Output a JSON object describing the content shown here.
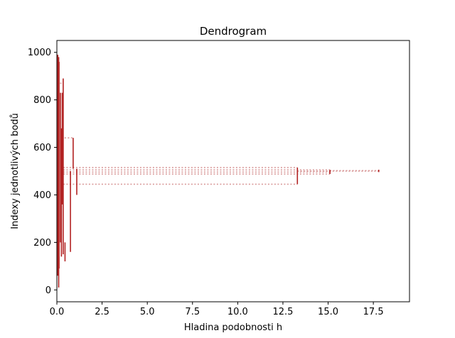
{
  "chart_data": {
    "type": "dendrogram",
    "title": "Dendrogram",
    "xlabel": "Hladina podobnosti h",
    "ylabel": "Indexy jednotlivých bodů",
    "xlim": [
      0,
      19.5
    ],
    "ylim": [
      -50,
      1050
    ],
    "xticks": [
      0,
      2.5,
      5,
      7.5,
      10,
      12.5,
      15,
      17.5
    ],
    "xtick_labels": [
      "0.0",
      "2.5",
      "5.0",
      "7.5",
      "10.0",
      "12.5",
      "15.0",
      "17.5"
    ],
    "yticks": [
      0,
      200,
      400,
      600,
      800,
      1000
    ],
    "ytick_labels": [
      "0",
      "200",
      "400",
      "600",
      "800",
      "1000"
    ],
    "grid": false,
    "link_color": "#b22222",
    "guide_color": "#d99a9a",
    "merges": [
      {
        "h": 0.05,
        "y_low": 60,
        "y_high": 990
      },
      {
        "h": 0.1,
        "y_low": 10,
        "y_high": 980
      },
      {
        "h": 0.12,
        "y_low": 90,
        "y_high": 960
      },
      {
        "h": 0.2,
        "y_low": 200,
        "y_high": 830
      },
      {
        "h": 0.25,
        "y_low": 140,
        "y_high": 680
      },
      {
        "h": 0.3,
        "y_low": 360,
        "y_high": 830
      },
      {
        "h": 0.35,
        "y_low": 150,
        "y_high": 890
      },
      {
        "h": 0.45,
        "y_low": 120,
        "y_high": 200
      },
      {
        "h": 0.75,
        "y_low": 160,
        "y_high": 500
      },
      {
        "h": 0.9,
        "y_low": 510,
        "y_high": 640
      },
      {
        "h": 1.1,
        "y_low": 400,
        "y_high": 510
      },
      {
        "h": 13.3,
        "y_low": 445,
        "y_high": 515
      },
      {
        "h": 15.1,
        "y_low": 488,
        "y_high": 505
      },
      {
        "h": 17.8,
        "y_low": 496,
        "y_high": 506
      }
    ],
    "guides": [
      {
        "h_from": 0.35,
        "h_to": 13.3,
        "y": 515
      },
      {
        "h_from": 0.35,
        "h_to": 15.1,
        "y": 505
      },
      {
        "h_from": 0.35,
        "h_to": 15.1,
        "y": 496
      },
      {
        "h_from": 0.35,
        "h_to": 15.1,
        "y": 488
      },
      {
        "h_from": 0.35,
        "h_to": 13.3,
        "y": 445
      },
      {
        "h_from": 13.3,
        "h_to": 17.8,
        "y": 500
      },
      {
        "h_from": 15.1,
        "h_to": 17.8,
        "y": 502
      },
      {
        "h_from": 0.25,
        "h_to": 0.9,
        "y": 640
      },
      {
        "h_from": 0.0,
        "h_to": 0.3,
        "y": 870
      }
    ]
  }
}
